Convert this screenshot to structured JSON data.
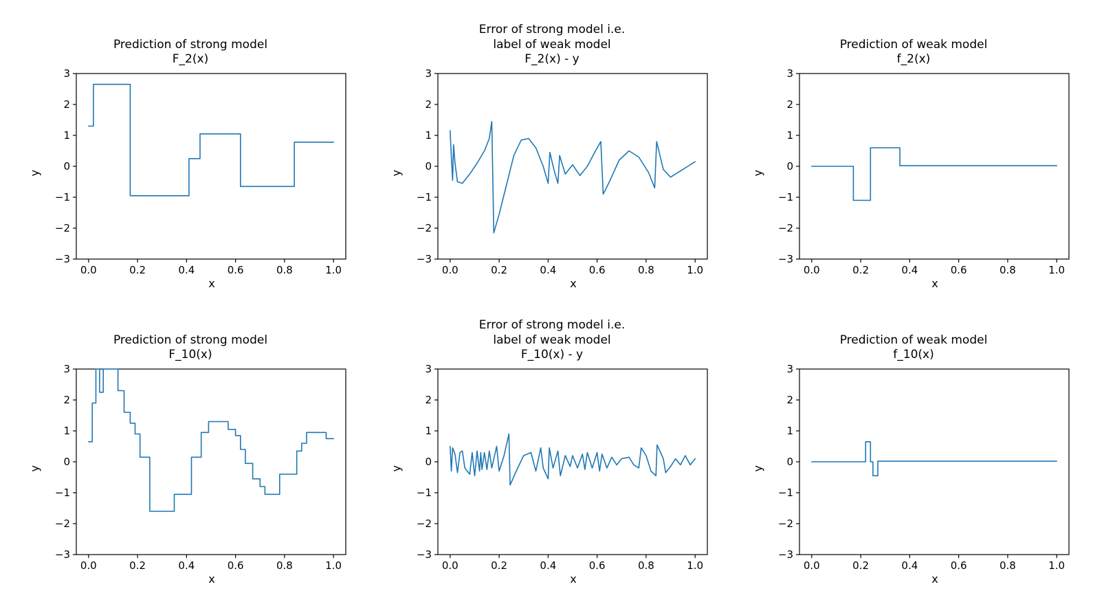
{
  "figure": {
    "background": "#ffffff",
    "line_color": "#1f77b4",
    "frame_color": "#000000",
    "rows": 2,
    "cols": 3
  },
  "chart_data": [
    {
      "type": "line",
      "interpolation": "step",
      "title": "Prediction of strong model\nF_2(x)",
      "xlabel": "x",
      "ylabel": "y",
      "xlim": [
        -0.05,
        1.05
      ],
      "ylim": [
        -3,
        3
      ],
      "xticks": [
        0.0,
        0.2,
        0.4,
        0.6,
        0.8,
        1.0
      ],
      "xtick_labels": [
        "0.0",
        "0.2",
        "0.4",
        "0.6",
        "0.8",
        "1.0"
      ],
      "yticks": [
        -3,
        -2,
        -1,
        0,
        1,
        2,
        3
      ],
      "ytick_labels": [
        "−3",
        "−2",
        "−1",
        "0",
        "1",
        "2",
        "3"
      ],
      "segments": [
        [
          0.0,
          0.02,
          1.3
        ],
        [
          0.02,
          0.17,
          2.65
        ],
        [
          0.17,
          0.41,
          -0.95
        ],
        [
          0.41,
          0.455,
          0.25
        ],
        [
          0.455,
          0.62,
          1.05
        ],
        [
          0.62,
          0.84,
          -0.65
        ],
        [
          0.84,
          1.0,
          0.78
        ]
      ]
    },
    {
      "type": "line",
      "interpolation": "linear",
      "title": "Error of strong model i.e.\nlabel of weak model\nF_2(x) - y",
      "xlabel": "x",
      "ylabel": "y",
      "xlim": [
        -0.05,
        1.05
      ],
      "ylim": [
        -3,
        3
      ],
      "xticks": [
        0.0,
        0.2,
        0.4,
        0.6,
        0.8,
        1.0
      ],
      "xtick_labels": [
        "0.0",
        "0.2",
        "0.4",
        "0.6",
        "0.8",
        "1.0"
      ],
      "yticks": [
        -3,
        -2,
        -1,
        0,
        1,
        2,
        3
      ],
      "ytick_labels": [
        "−3",
        "−2",
        "−1",
        "0",
        "1",
        "2",
        "3"
      ],
      "x": [
        0.0,
        0.005,
        0.01,
        0.014,
        0.02,
        0.03,
        0.05,
        0.08,
        0.11,
        0.14,
        0.16,
        0.17,
        0.178,
        0.2,
        0.23,
        0.26,
        0.29,
        0.32,
        0.35,
        0.38,
        0.4,
        0.407,
        0.425,
        0.44,
        0.447,
        0.47,
        0.5,
        0.53,
        0.56,
        0.59,
        0.615,
        0.625,
        0.65,
        0.69,
        0.73,
        0.77,
        0.81,
        0.835,
        0.843,
        0.87,
        0.9,
        0.94,
        0.97,
        1.0
      ],
      "y": [
        1.15,
        0.3,
        -0.45,
        0.7,
        0.1,
        -0.5,
        -0.55,
        -0.25,
        0.1,
        0.5,
        0.9,
        1.45,
        -2.15,
        -1.55,
        -0.6,
        0.35,
        0.85,
        0.9,
        0.6,
        0.0,
        -0.55,
        0.45,
        -0.15,
        -0.55,
        0.35,
        -0.25,
        0.05,
        -0.3,
        0.0,
        0.45,
        0.8,
        -0.9,
        -0.5,
        0.2,
        0.5,
        0.3,
        -0.2,
        -0.7,
        0.8,
        -0.1,
        -0.35,
        -0.15,
        0.0,
        0.15
      ]
    },
    {
      "type": "line",
      "interpolation": "step",
      "title": "Prediction of weak model\nf_2(x)",
      "xlabel": "x",
      "ylabel": "y",
      "xlim": [
        -0.05,
        1.05
      ],
      "ylim": [
        -3,
        3
      ],
      "xticks": [
        0.0,
        0.2,
        0.4,
        0.6,
        0.8,
        1.0
      ],
      "xtick_labels": [
        "0.0",
        "0.2",
        "0.4",
        "0.6",
        "0.8",
        "1.0"
      ],
      "yticks": [
        -3,
        -2,
        -1,
        0,
        1,
        2,
        3
      ],
      "ytick_labels": [
        "−3",
        "−2",
        "−1",
        "0",
        "1",
        "2",
        "3"
      ],
      "segments": [
        [
          0.0,
          0.17,
          0.0
        ],
        [
          0.17,
          0.24,
          -1.1
        ],
        [
          0.24,
          0.36,
          0.6
        ],
        [
          0.36,
          1.0,
          0.02
        ]
      ]
    },
    {
      "type": "line",
      "interpolation": "step",
      "title": "Prediction of strong model\nF_10(x)",
      "xlabel": "x",
      "ylabel": "y",
      "xlim": [
        -0.05,
        1.05
      ],
      "ylim": [
        -3,
        3
      ],
      "xticks": [
        0.0,
        0.2,
        0.4,
        0.6,
        0.8,
        1.0
      ],
      "xtick_labels": [
        "0.0",
        "0.2",
        "0.4",
        "0.6",
        "0.8",
        "1.0"
      ],
      "yticks": [
        -3,
        -2,
        -1,
        0,
        1,
        2,
        3
      ],
      "ytick_labels": [
        "−3",
        "−2",
        "−1",
        "0",
        "1",
        "2",
        "3"
      ],
      "segments": [
        [
          0.0,
          0.015,
          0.65
        ],
        [
          0.015,
          0.03,
          1.9
        ],
        [
          0.03,
          0.045,
          3.05
        ],
        [
          0.045,
          0.06,
          2.25
        ],
        [
          0.06,
          0.12,
          3.05
        ],
        [
          0.12,
          0.145,
          2.3
        ],
        [
          0.145,
          0.17,
          1.6
        ],
        [
          0.17,
          0.19,
          1.25
        ],
        [
          0.19,
          0.21,
          0.9
        ],
        [
          0.21,
          0.25,
          0.15
        ],
        [
          0.25,
          0.35,
          -1.6
        ],
        [
          0.35,
          0.42,
          -1.05
        ],
        [
          0.42,
          0.46,
          0.15
        ],
        [
          0.46,
          0.49,
          0.95
        ],
        [
          0.49,
          0.57,
          1.3
        ],
        [
          0.57,
          0.6,
          1.05
        ],
        [
          0.6,
          0.62,
          0.85
        ],
        [
          0.62,
          0.64,
          0.4
        ],
        [
          0.64,
          0.67,
          -0.05
        ],
        [
          0.67,
          0.7,
          -0.55
        ],
        [
          0.7,
          0.72,
          -0.8
        ],
        [
          0.72,
          0.78,
          -1.05
        ],
        [
          0.78,
          0.85,
          -0.4
        ],
        [
          0.85,
          0.87,
          0.35
        ],
        [
          0.87,
          0.89,
          0.6
        ],
        [
          0.89,
          0.97,
          0.95
        ],
        [
          0.97,
          1.0,
          0.75
        ]
      ]
    },
    {
      "type": "line",
      "interpolation": "linear",
      "title": "Error of strong model i.e.\nlabel of weak model\nF_10(x) - y",
      "xlabel": "x",
      "ylabel": "y",
      "xlim": [
        -0.05,
        1.05
      ],
      "ylim": [
        -3,
        3
      ],
      "xticks": [
        0.0,
        0.2,
        0.4,
        0.6,
        0.8,
        1.0
      ],
      "xtick_labels": [
        "0.0",
        "0.2",
        "0.4",
        "0.6",
        "0.8",
        "1.0"
      ],
      "yticks": [
        -3,
        -2,
        -1,
        0,
        1,
        2,
        3
      ],
      "ytick_labels": [
        "−3",
        "−2",
        "−1",
        "0",
        "1",
        "2",
        "3"
      ],
      "x": [
        0.0,
        0.005,
        0.01,
        0.02,
        0.03,
        0.04,
        0.05,
        0.06,
        0.08,
        0.09,
        0.1,
        0.11,
        0.12,
        0.125,
        0.13,
        0.14,
        0.15,
        0.16,
        0.17,
        0.19,
        0.2,
        0.22,
        0.24,
        0.245,
        0.27,
        0.3,
        0.33,
        0.35,
        0.37,
        0.38,
        0.4,
        0.405,
        0.42,
        0.44,
        0.45,
        0.47,
        0.49,
        0.5,
        0.52,
        0.54,
        0.55,
        0.56,
        0.58,
        0.6,
        0.61,
        0.62,
        0.64,
        0.66,
        0.68,
        0.7,
        0.73,
        0.75,
        0.77,
        0.78,
        0.8,
        0.82,
        0.84,
        0.845,
        0.87,
        0.88,
        0.9,
        0.92,
        0.94,
        0.96,
        0.98,
        1.0
      ],
      "y": [
        0.5,
        -0.3,
        0.45,
        0.25,
        -0.35,
        0.3,
        0.35,
        -0.2,
        -0.4,
        0.3,
        -0.45,
        0.35,
        -0.3,
        0.3,
        -0.25,
        0.3,
        -0.25,
        0.35,
        -0.2,
        0.5,
        -0.3,
        0.2,
        0.9,
        -0.75,
        -0.3,
        0.2,
        0.3,
        -0.3,
        0.45,
        -0.2,
        -0.55,
        0.45,
        -0.2,
        0.35,
        -0.45,
        0.2,
        -0.15,
        0.2,
        -0.2,
        0.25,
        -0.25,
        0.3,
        -0.2,
        0.3,
        -0.3,
        0.25,
        -0.2,
        0.15,
        -0.1,
        0.1,
        0.15,
        -0.1,
        -0.2,
        0.45,
        0.2,
        -0.3,
        -0.45,
        0.55,
        0.1,
        -0.35,
        -0.15,
        0.1,
        -0.1,
        0.2,
        -0.1,
        0.1
      ]
    },
    {
      "type": "line",
      "interpolation": "step",
      "title": "Prediction of weak model\nf_10(x)",
      "xlabel": "x",
      "ylabel": "y",
      "xlim": [
        -0.05,
        1.05
      ],
      "ylim": [
        -3,
        3
      ],
      "xticks": [
        0.0,
        0.2,
        0.4,
        0.6,
        0.8,
        1.0
      ],
      "xtick_labels": [
        "0.0",
        "0.2",
        "0.4",
        "0.6",
        "0.8",
        "1.0"
      ],
      "yticks": [
        -3,
        -2,
        -1,
        0,
        1,
        2,
        3
      ],
      "ytick_labels": [
        "−3",
        "−2",
        "−1",
        "0",
        "1",
        "2",
        "3"
      ],
      "segments": [
        [
          0.0,
          0.22,
          0.0
        ],
        [
          0.22,
          0.24,
          0.65
        ],
        [
          0.24,
          0.25,
          0.0
        ],
        [
          0.25,
          0.27,
          -0.45
        ],
        [
          0.27,
          1.0,
          0.02
        ]
      ]
    }
  ]
}
